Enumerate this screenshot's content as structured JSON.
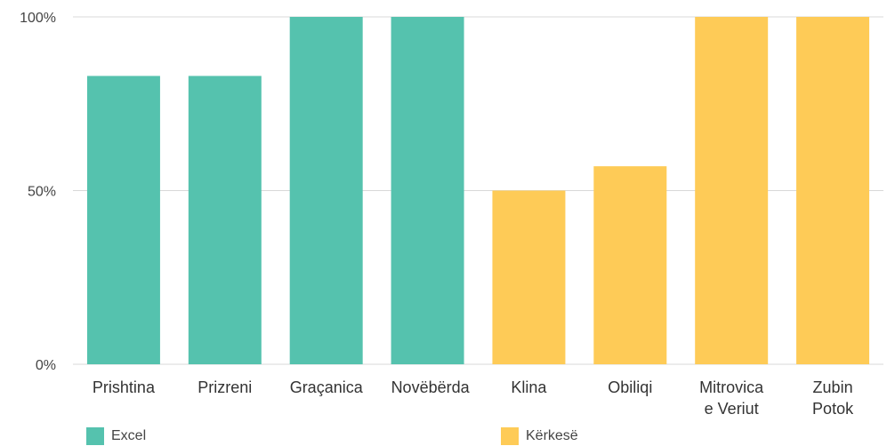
{
  "chart_data": {
    "type": "bar",
    "categories": [
      "Prishtina",
      "Prizreni",
      "Graçanica",
      "Novëbërda",
      "Klina",
      "Obiliqi",
      "Mitrovica e Veriut",
      "Zubin Potok"
    ],
    "series": [
      {
        "name": "Excel",
        "color": "#55c2ae",
        "values": [
          83,
          83,
          100,
          100,
          null,
          null,
          null,
          null
        ]
      },
      {
        "name": "Kërkesë",
        "color": "#fecb57",
        "values": [
          null,
          null,
          null,
          null,
          50,
          57,
          100,
          100
        ]
      }
    ],
    "ylim": [
      0,
      100
    ],
    "yticks": [
      {
        "value": 0,
        "label": "0%"
      },
      {
        "value": 50,
        "label": "50%"
      },
      {
        "value": 100,
        "label": "100%"
      }
    ],
    "grid": true
  }
}
